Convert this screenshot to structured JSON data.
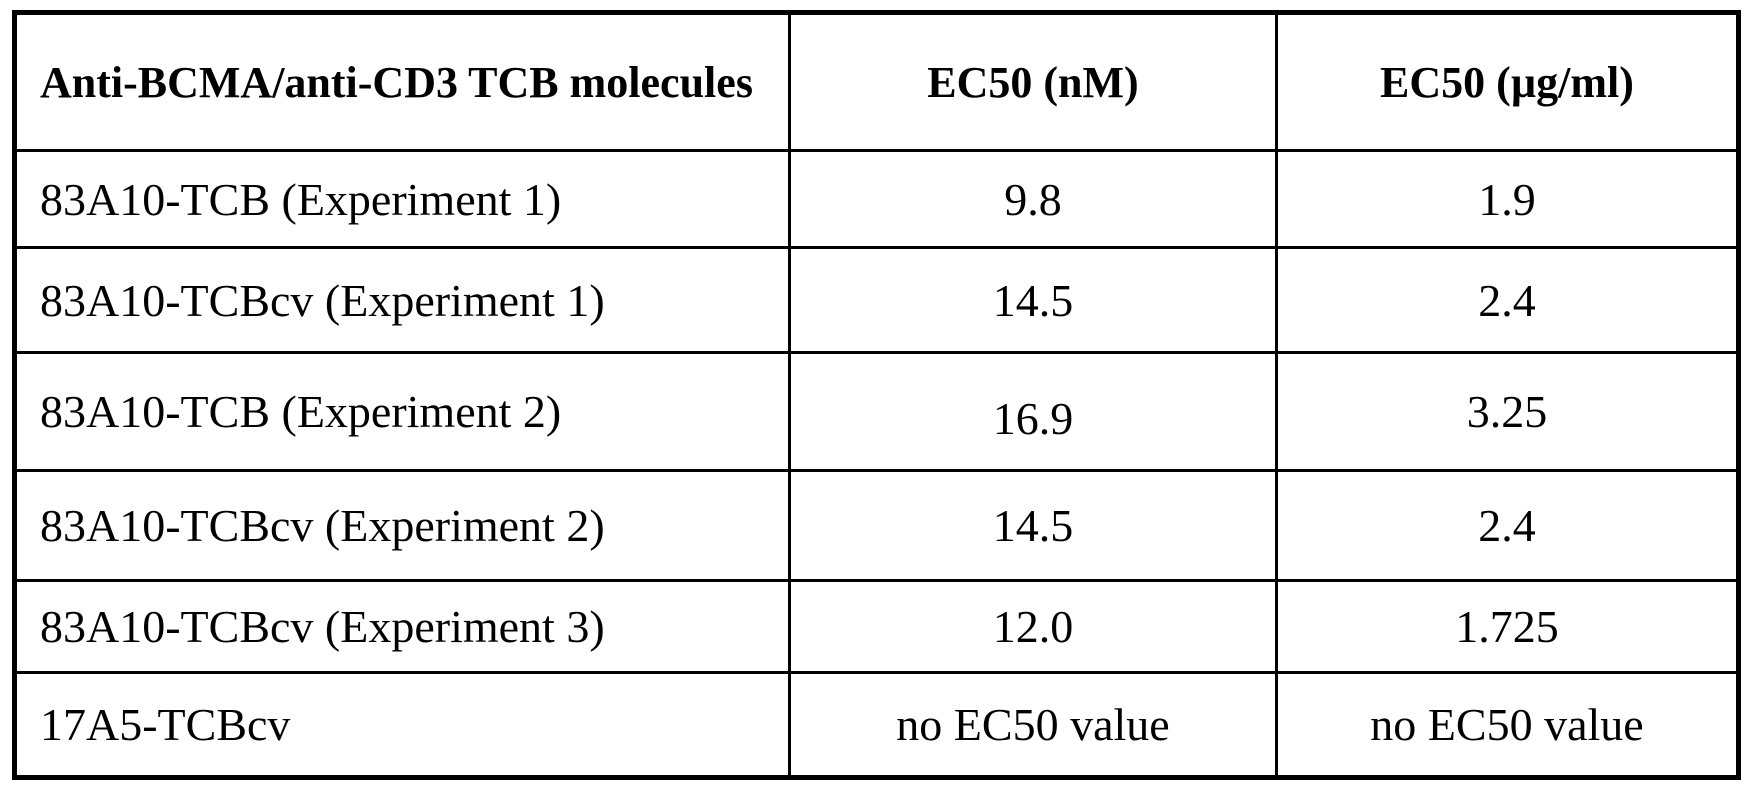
{
  "table": {
    "columns": [
      {
        "label": "Anti-BCMA/anti-CD3 TCB molecules"
      },
      {
        "label": "EC50 (nM)"
      },
      {
        "label": "EC50 (µg/ml)"
      }
    ],
    "rows": [
      {
        "molecule": "83A10-TCB (Experiment 1)",
        "ec50_nM": "9.8",
        "ec50_ug_ml": "1.9"
      },
      {
        "molecule": "83A10-TCBcv (Experiment 1)",
        "ec50_nM": "14.5",
        "ec50_ug_ml": "2.4"
      },
      {
        "molecule": "83A10-TCB (Experiment 2)",
        "ec50_nM": "16.9",
        "ec50_ug_ml": "3.25"
      },
      {
        "molecule": "83A10-TCBcv (Experiment 2)",
        "ec50_nM": "14.5",
        "ec50_ug_ml": "2.4"
      },
      {
        "molecule": "83A10-TCBcv (Experiment 3)",
        "ec50_nM": "12.0",
        "ec50_ug_ml": "1.725"
      },
      {
        "molecule": "17A5-TCBcv",
        "ec50_nM": "no EC50 value",
        "ec50_ug_ml": "no EC50 value"
      }
    ],
    "colors": {
      "border": "#000000",
      "background": "#ffffff",
      "text": "#000000"
    }
  }
}
